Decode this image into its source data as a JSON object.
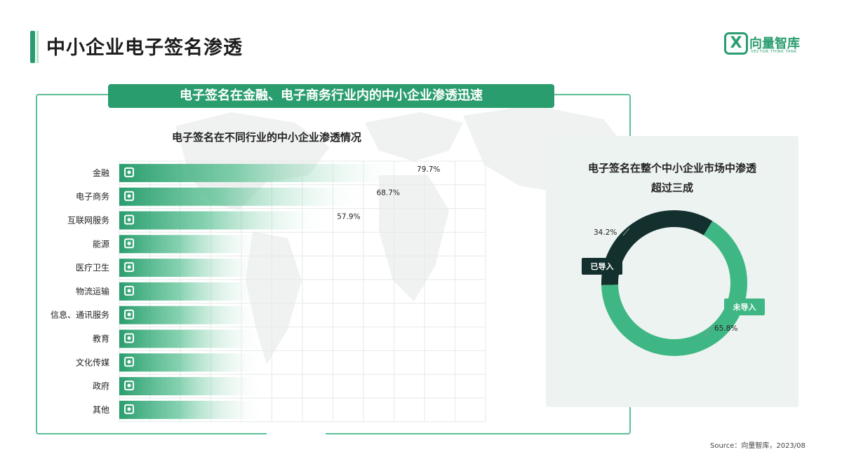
{
  "header": {
    "title": "中小企业电子签名渗透",
    "logo": {
      "icon": "X",
      "name_cn": "向量智库",
      "name_en": "VECTOR THINK TANK",
      "color": "#2a9d6e"
    }
  },
  "banner": {
    "text": "电子签名在金融、电子商务行业内的中小企业渗透迅速"
  },
  "source": "Source：向量智库，2023/08",
  "colors": {
    "accent": "#2a9d6e",
    "dark": "#13302f",
    "light": "#3fb784"
  },
  "chart_data": [
    {
      "type": "bar",
      "orientation": "horizontal",
      "title": "电子签名在不同行业的中小企业渗透情况",
      "categories": [
        "金融",
        "电子商务",
        "互联网服务",
        "能源",
        "医疗卫生",
        "物流运输",
        "信息、通讯服务",
        "教育",
        "文化传媒",
        "政府",
        "其他"
      ],
      "icons": [
        "finance-icon",
        "shopping-cart-icon",
        "globe-icon",
        "energy-icon",
        "hospital-icon",
        "logistics-icon",
        "communication-icon",
        "education-icon",
        "tv-icon",
        "government-icon",
        "other-icon"
      ],
      "values": [
        79.7,
        68.7,
        57.9,
        null,
        null,
        null,
        null,
        null,
        null,
        null,
        null
      ],
      "data_labels": [
        "79.7%",
        "68.7%",
        "57.9%",
        "",
        "",
        "",
        "",
        "",
        "",
        "",
        ""
      ],
      "grid": true
    },
    {
      "type": "pie",
      "variant": "donut",
      "title_lines": [
        "电子签名在整个中小企业市场中渗透",
        "超过三成"
      ],
      "slices": [
        {
          "name": "已导入",
          "value": 34.2,
          "label": "34.2%",
          "color": "#13302f"
        },
        {
          "name": "未导入",
          "value": 65.8,
          "label": "65.8%",
          "color": "#3fb784"
        }
      ]
    }
  ]
}
